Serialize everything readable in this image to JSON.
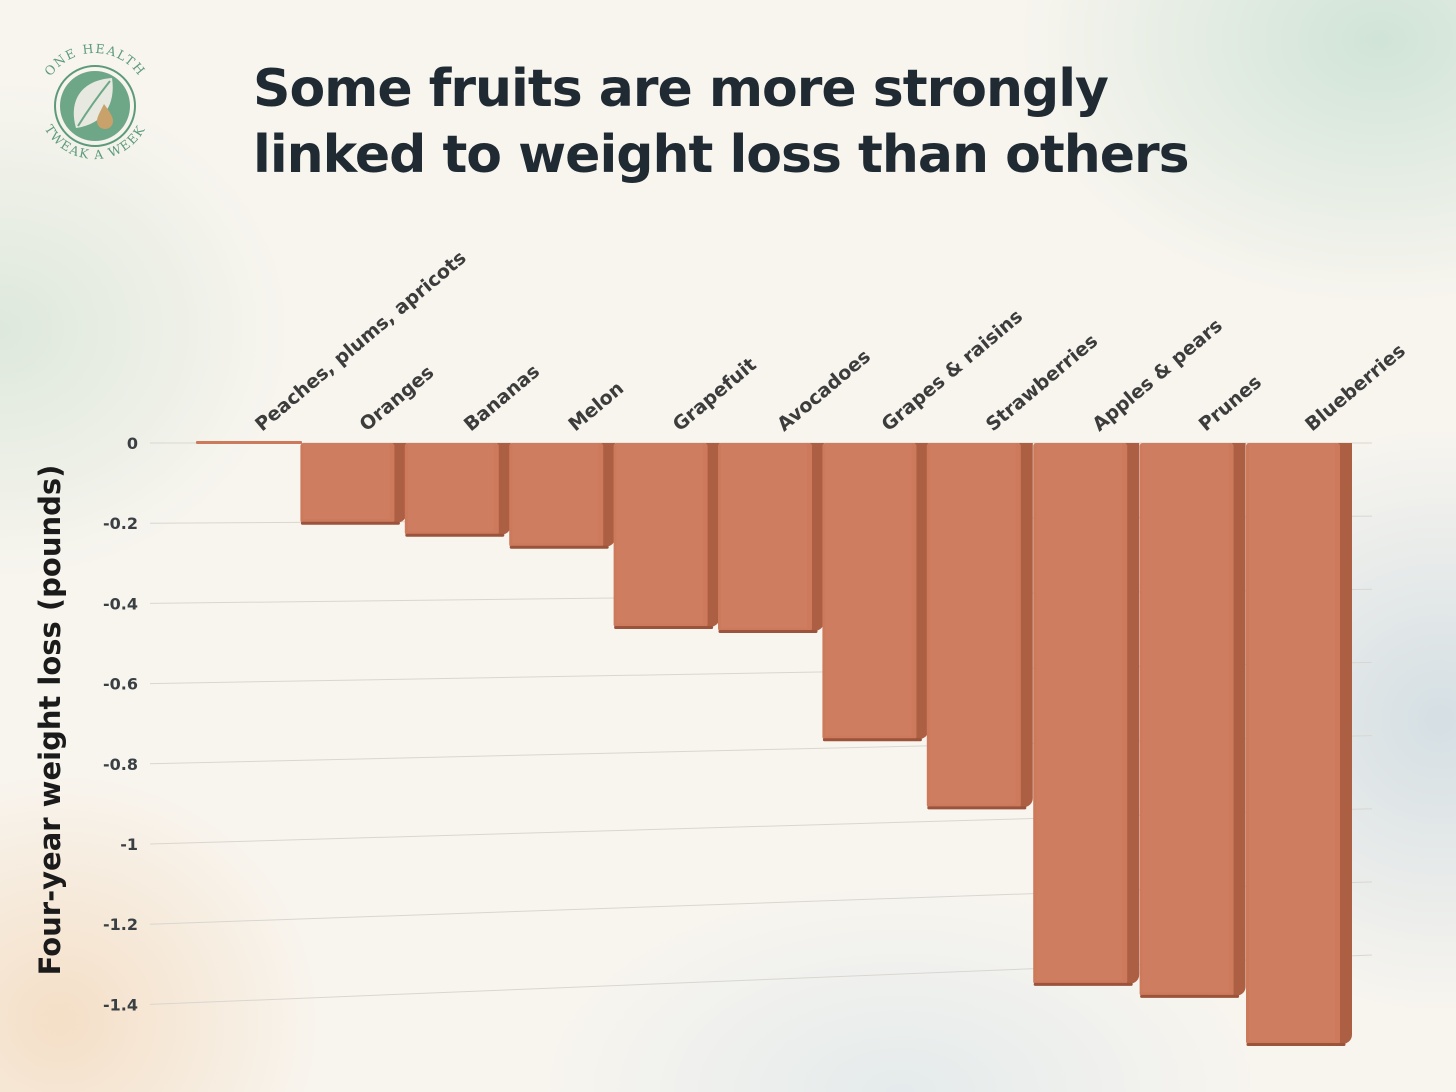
{
  "title_lines": [
    "Some fruits are more strongly",
    "linked to weight loss than others"
  ],
  "logo": {
    "top_text": "ONE HEALTH",
    "bottom_text": "TWEAK A WEEK",
    "icon": "leaf-droplet-icon",
    "colors": {
      "primary": "#5d9a7a",
      "accent": "#c8a26a"
    }
  },
  "colors": {
    "bar_front": "#cd7a5c",
    "bar_side": "#ad5f44",
    "bar_bottom": "#9b533b",
    "grid": "#d9d6d0",
    "text": "#1f2a33"
  },
  "chart_data": {
    "type": "bar",
    "title": "Some fruits are more strongly linked to weight loss than others",
    "xlabel": "",
    "ylabel": "Four-year weight loss (pounds)",
    "categories": [
      "Peaches, plums, apricots",
      "Oranges",
      "Bananas",
      "Melon",
      "Grapefuit",
      "Avocadoes",
      "Grapes & raisins",
      "Strawberries",
      "Apples & pears",
      "Prunes",
      "Blueberries"
    ],
    "values": [
      0.0,
      -0.2,
      -0.23,
      -0.26,
      -0.46,
      -0.47,
      -0.74,
      -0.91,
      -1.35,
      -1.38,
      -1.5
    ],
    "ylim": [
      -1.5,
      0
    ],
    "yticks": [
      0,
      -0.2,
      -0.4,
      -0.6,
      -0.8,
      -1,
      -1.2,
      -1.4
    ],
    "ytick_labels": [
      "0",
      "-0.2",
      "-0.4",
      "-0.6",
      "-0.8",
      "-1",
      "-1.2",
      "-1.4"
    ],
    "grid": true,
    "legend": false,
    "style": "3d"
  }
}
